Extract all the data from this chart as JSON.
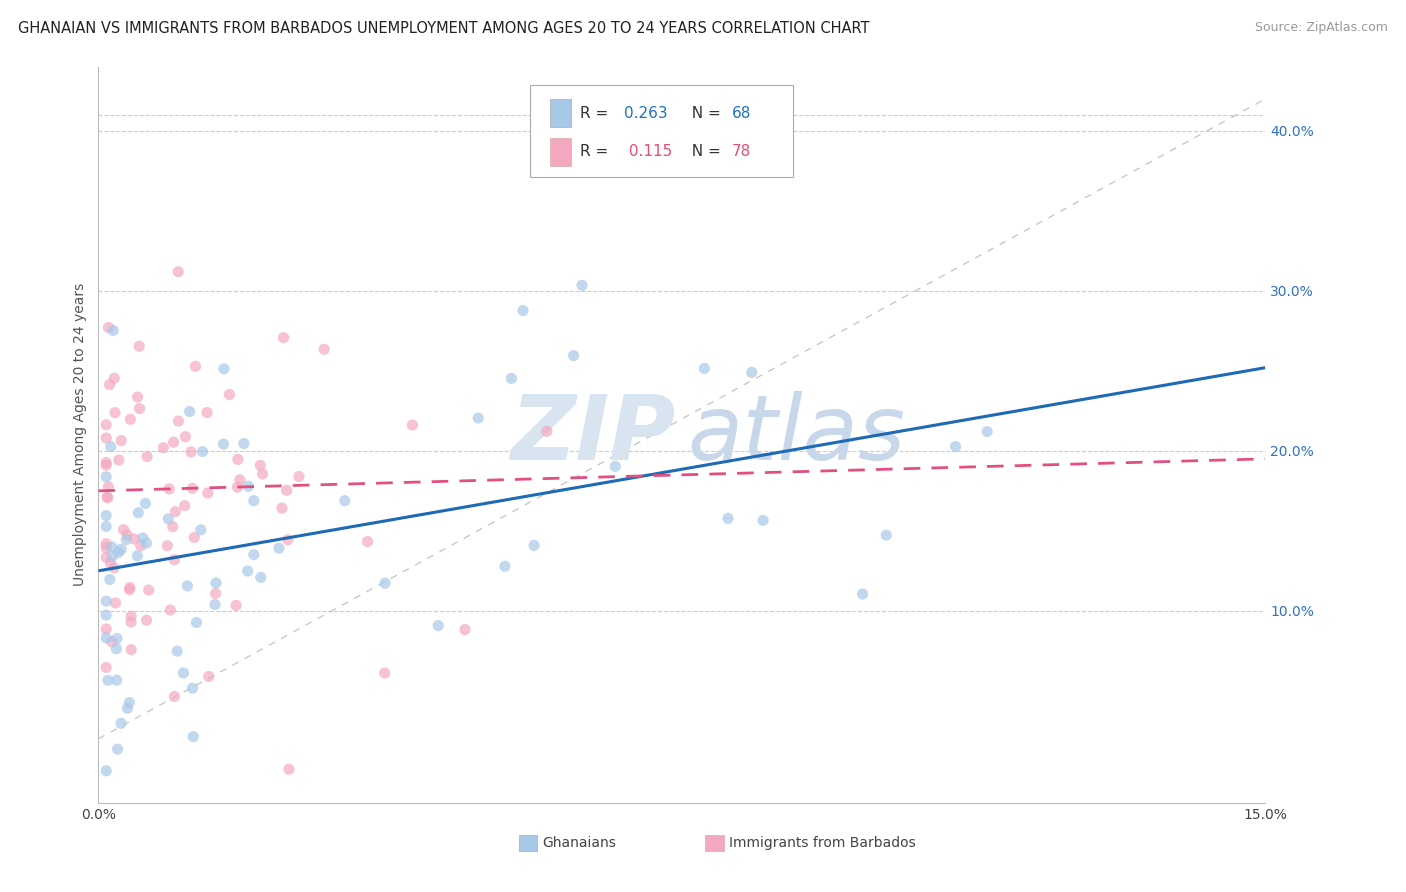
{
  "title": "GHANAIAN VS IMMIGRANTS FROM BARBADOS UNEMPLOYMENT AMONG AGES 20 TO 24 YEARS CORRELATION CHART",
  "source": "Source: ZipAtlas.com",
  "ylabel": "Unemployment Among Ages 20 to 24 years",
  "xlim": [
    0.0,
    0.15
  ],
  "ylim": [
    -0.02,
    0.44
  ],
  "ytick_values": [
    0.1,
    0.2,
    0.3,
    0.4
  ],
  "ytick_labels": [
    "10.0%",
    "20.0%",
    "30.0%",
    "40.0%"
  ],
  "xtick_values": [
    0.0,
    0.15
  ],
  "xtick_labels": [
    "0.0%",
    "15.0%"
  ],
  "ghanaian_color": "#a8c8e8",
  "ghanaian_line_color": "#1f6ab5",
  "barbados_color": "#f4a8c0",
  "barbados_line_color": "#e05080",
  "background_color": "#ffffff",
  "grid_color": "#cccccc",
  "watermark_zip_color": "#d8e4f0",
  "watermark_atlas_color": "#c8d8ea",
  "title_fontsize": 10.5,
  "axis_label_fontsize": 10,
  "tick_fontsize": 10,
  "dot_size": 65,
  "dot_alpha": 0.7,
  "legend_R1": "0.263",
  "legend_N1": "68",
  "legend_R2": "0.115",
  "legend_N2": "78",
  "ghanaian_R": 0.263,
  "ghanaian_N": 68,
  "barbados_R": 0.115,
  "barbados_N": 78,
  "blue_line_y0": 0.125,
  "blue_line_y1": 0.252,
  "pink_line_y0": 0.175,
  "pink_line_y1": 0.195
}
